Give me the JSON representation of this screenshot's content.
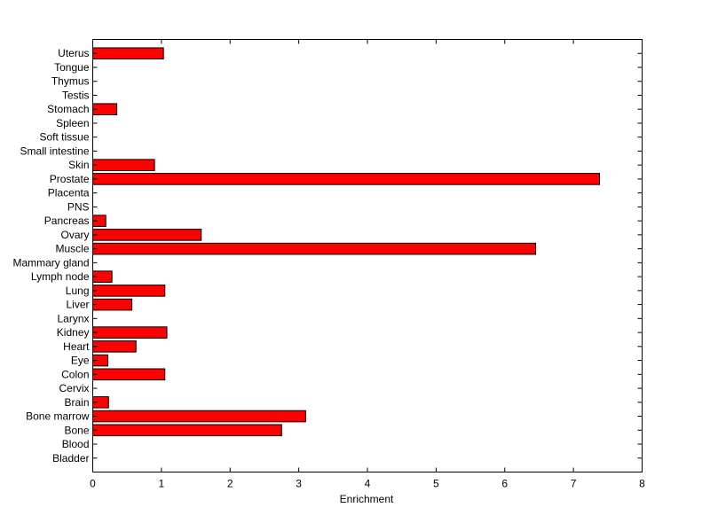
{
  "chart_data": {
    "type": "bar",
    "orientation": "horizontal",
    "title": "",
    "xlabel": "Enrichment",
    "ylabel": "",
    "xlim": [
      0,
      8
    ],
    "xticks": [
      0,
      1,
      2,
      3,
      4,
      5,
      6,
      7,
      8
    ],
    "grid": false,
    "categories": [
      "Bladder",
      "Blood",
      "Bone",
      "Bone marrow",
      "Brain",
      "Cervix",
      "Colon",
      "Eye",
      "Heart",
      "Kidney",
      "Larynx",
      "Liver",
      "Lung",
      "Lymph node",
      "Mammary gland",
      "Muscle",
      "Ovary",
      "Pancreas",
      "PNS",
      "Placenta",
      "Prostate",
      "Skin",
      "Small intestine",
      "Soft tissue",
      "Spleen",
      "Stomach",
      "Testis",
      "Thymus",
      "Tongue",
      "Uterus"
    ],
    "values": [
      0,
      0,
      2.75,
      3.1,
      0.23,
      0,
      1.05,
      0.22,
      0.63,
      1.08,
      0,
      0.57,
      1.05,
      0.28,
      0,
      6.45,
      1.58,
      0.19,
      0,
      0,
      7.38,
      0.9,
      0,
      0,
      0,
      0.35,
      0,
      0,
      0,
      1.03
    ],
    "colors": {
      "bar_fill": "#ff0000",
      "bar_edge": "#000000"
    }
  }
}
